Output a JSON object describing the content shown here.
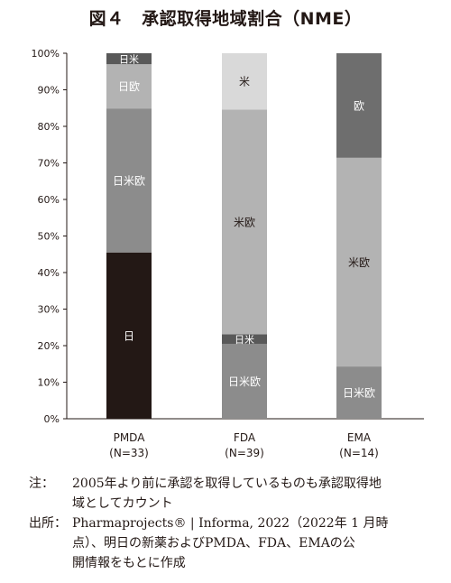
{
  "title": "図４　承認取得地域割合（NME）",
  "chart_data": {
    "type": "bar",
    "stacked": true,
    "ylim": [
      0,
      100
    ],
    "yticks": [
      "0%",
      "10%",
      "20%",
      "30%",
      "40%",
      "50%",
      "60%",
      "70%",
      "80%",
      "90%",
      "100%"
    ],
    "grid": false,
    "categories": [
      {
        "name": "PMDA",
        "n": "(N=33)"
      },
      {
        "name": "FDA",
        "n": "(N=39)"
      },
      {
        "name": "EMA",
        "n": "(N=14)"
      }
    ],
    "bars": [
      [
        {
          "label": "日",
          "value": 45.5,
          "color": "#231815",
          "text_color": "#ffffff"
        },
        {
          "label": "日米欧",
          "value": 39.4,
          "color": "#8c8c8c",
          "text_color": "#ffffff"
        },
        {
          "label": "日欧",
          "value": 12.1,
          "color": "#b3b3b3",
          "text_color": "#ffffff"
        },
        {
          "label": "日米",
          "value": 3.0,
          "color": "#595959",
          "text_color": "#ffffff"
        }
      ],
      [
        {
          "label": "日米欧",
          "value": 20.5,
          "color": "#8c8c8c",
          "text_color": "#ffffff"
        },
        {
          "label": "日米",
          "value": 2.6,
          "color": "#595959",
          "text_color": "#ffffff"
        },
        {
          "label": "米欧",
          "value": 61.5,
          "color": "#b3b3b3",
          "text_color": "#231815"
        },
        {
          "label": "米",
          "value": 15.4,
          "color": "#d9d9d9",
          "text_color": "#231815"
        }
      ],
      [
        {
          "label": "日米欧",
          "value": 14.3,
          "color": "#8c8c8c",
          "text_color": "#ffffff"
        },
        {
          "label": "米欧",
          "value": 57.1,
          "color": "#b3b3b3",
          "text_color": "#231815"
        },
        {
          "label": "欧",
          "value": 28.6,
          "color": "#6e6e6e",
          "text_color": "#ffffff"
        }
      ]
    ]
  },
  "notes": {
    "note_head": "注：",
    "note_line1": "2005年より前に承認を取得しているものも承認取得地",
    "note_line2": "域としてカウント",
    "source_head": "出所：",
    "source_line1": "Pharmaprojects® | Informa, 2022（2022年 1 月時",
    "source_line2": "点）、明日の新薬およびPMDA、FDA、EMAの公",
    "source_line3": "開情報をもとに作成"
  }
}
